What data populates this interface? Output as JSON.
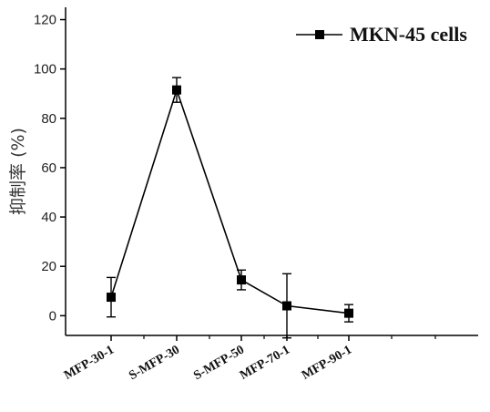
{
  "chart_data": {
    "type": "line",
    "title": "",
    "xlabel": "",
    "ylabel": "抑制率 (%)",
    "categories": [
      "MFP-30-1",
      "S-MFP-30",
      "S-MFP-50",
      "MFP-70-1",
      "MFP-90-1"
    ],
    "series": [
      {
        "name": "MKN-45 cells",
        "values": [
          7.5,
          91.5,
          14.5,
          4.0,
          1.0
        ],
        "errors": [
          8.0,
          5.0,
          4.0,
          13.0,
          3.5
        ],
        "color": "#000000",
        "marker": "square"
      }
    ],
    "ylim": [
      -8,
      125
    ],
    "yticks": [
      0,
      20,
      40,
      60,
      80,
      100,
      120
    ],
    "grid": false,
    "legend": "top-right"
  }
}
